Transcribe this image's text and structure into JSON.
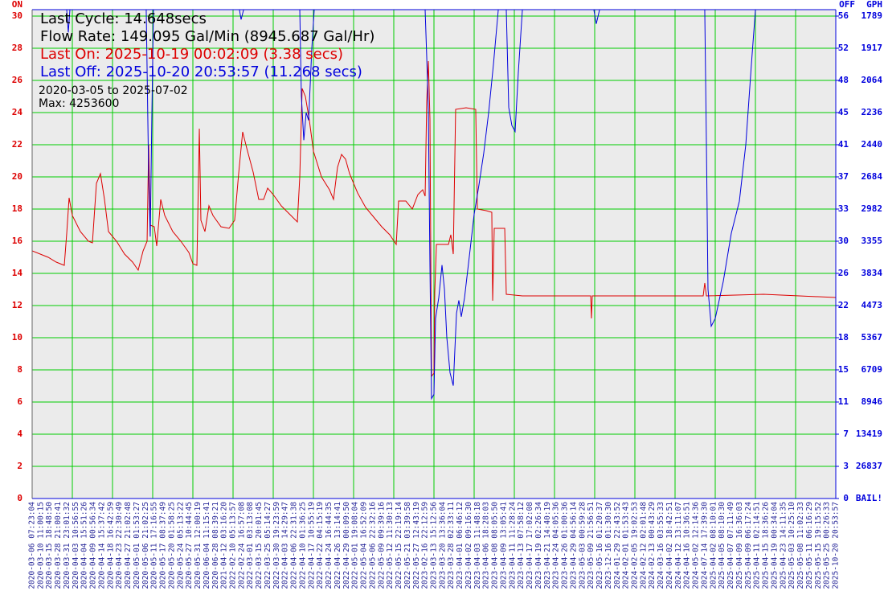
{
  "chart_data": {
    "type": "line",
    "stats": [
      "Last Cycle: 14.648secs",
      "Flow Rate: 149.095 Gal/Min (8945.687 Gal/Hr)",
      "Last On: 2025-10-19 00:02:09 (3.38 secs)",
      "Last Off: 2025-10-20 20:53:57 (11.268 secs)",
      "2020-03-05 to 2025-07-02",
      "Max: 4253600"
    ],
    "y_label": "ON",
    "y2_label": "OFF",
    "gph_label": "GPH",
    "grid": true,
    "categories": [
      "2020-03-06 07:23:04",
      "2020-03-10 11:00:15",
      "2020-03-15 18:48:50",
      "2020-03-28 21:00:41",
      "2020-03-31 23:01:32",
      "2020-04-03 10:56:55",
      "2020-04-04 15:51:26",
      "2020-04-09 00:56:34",
      "2020-04-14 15:37:42",
      "2020-04-18 16:42:59",
      "2020-04-23 22:30:49",
      "2020-04-27 21:02:48",
      "2020-05-01 01:53:27",
      "2020-05-06 21:02:25",
      "2020-05-11 17:16:55",
      "2020-05-17 08:37:49",
      "2020-05-20 01:58:25",
      "2020-05-24 05:13:22",
      "2020-05-27 10:44:45",
      "2020-05-31 12:00:19",
      "2020-06-04 11:15:41",
      "2020-06-28 08:39:21",
      "2021-04-12 03:16:20",
      "2022-02-10 05:13:57",
      "2022-02-24 16:57:08",
      "2022-03-01 03:13:08",
      "2022-03-15 20:01:45",
      "2022-03-25 05:14:27",
      "2022-03-30 19:23:59",
      "2022-04-03 14:29:47",
      "2022-04-06 22:31:38",
      "2022-04-10 01:36:25",
      "2022-04-17 10:55:19",
      "2022-04-22 04:15:19",
      "2022-04-24 16:44:35",
      "2022-04-26 13:14:41",
      "2022-04-29 00:09:50",
      "2022-05-01 19:08:04",
      "2022-05-04 16:52:09",
      "2022-05-06 22:32:16",
      "2022-05-09 09:39:16",
      "2022-05-12 11:30:13",
      "2022-05-15 22:19:14",
      "2022-05-21 03:39:58",
      "2022-05-27 12:43:19",
      "2023-02-16 22:12:59",
      "2023-03-13 15:12:56",
      "2023-03-20 13:36:04",
      "2023-03-28 02:33:11",
      "2023-04-01 06:46:12",
      "2023-04-02 09:16:30",
      "2023-04-03 11:48:18",
      "2023-04-06 18:28:03",
      "2023-04-08 08:05:50",
      "2023-04-09 13:05:41",
      "2023-04-11 11:28:24",
      "2023-04-13 07:58:12",
      "2023-04-17 17:02:08",
      "2023-04-19 02:26:34",
      "2023-04-21 14:40:19",
      "2023-04-24 04:05:36",
      "2023-04-26 01:00:36",
      "2023-04-29 04:56:14",
      "2023-05-03 00:59:28",
      "2023-05-09 21:56:51",
      "2023-05-16 01:20:37",
      "2023-12-16 01:30:30",
      "2024-01-29 22:43:52",
      "2024-02-01 01:53:43",
      "2024-02-05 19:02:53",
      "2024-02-12 02:01:48",
      "2024-02-13 00:43:29",
      "2024-03-16 03:55:33",
      "2024-04-02 18:42:51",
      "2024-04-12 13:11:07",
      "2024-04-16 10:36:51",
      "2024-05-02 12:14:36",
      "2024-07-14 17:39:30",
      "2025-04-02 08:10:01",
      "2025-04-05 08:10:30",
      "2025-04-07 07:11:49",
      "2025-04-09 16:36:03",
      "2025-04-09 06:17:24",
      "2025-04-11 02:14:51",
      "2025-04-15 18:36:26",
      "2025-04-19 00:34:04",
      "2025-04-23 14:11:35",
      "2025-05-03 10:25:10",
      "2025-05-08 11:02:33",
      "2025-05-11 06:16:29",
      "2025-05-15 19:15:52",
      "2025-05-25 00:26:33",
      "2025-10-20 20:53:57"
    ],
    "xlim": [
      0,
      92
    ],
    "xgrid": [
      0,
      4.6,
      9.2,
      13.8,
      18.4,
      23,
      27.6,
      32.2,
      36.8,
      41.4,
      46,
      50.6,
      55.2,
      59.8,
      64.4,
      69,
      73.6,
      78.2,
      82.8,
      87.4,
      92
    ],
    "ylim": [
      0,
      30.4
    ],
    "yticks": [
      0,
      2,
      4,
      6,
      8,
      10,
      12,
      14,
      16,
      18,
      20,
      22,
      24,
      26,
      28,
      30
    ],
    "y2lim": [
      0,
      56.747
    ],
    "y2ticks": [
      {
        "value": 0,
        "label": "0"
      },
      {
        "value": 3.733,
        "label": "3"
      },
      {
        "value": 7.467,
        "label": "7"
      },
      {
        "value": 11.2,
        "label": "11"
      },
      {
        "value": 14.933,
        "label": "15"
      },
      {
        "value": 18.667,
        "label": "18"
      },
      {
        "value": 22.4,
        "label": "22"
      },
      {
        "value": 26.133,
        "label": "26"
      },
      {
        "value": 29.867,
        "label": "30"
      },
      {
        "value": 33.6,
        "label": "33"
      },
      {
        "value": 37.333,
        "label": "37"
      },
      {
        "value": 41.067,
        "label": "41"
      },
      {
        "value": 44.8,
        "label": "45"
      },
      {
        "value": 48.533,
        "label": "48"
      },
      {
        "value": 52.267,
        "label": "52"
      },
      {
        "value": 56,
        "label": "56"
      }
    ],
    "gph_ticks": [
      {
        "value": 0,
        "label": "BAIL!"
      },
      {
        "value": 3.733,
        "label": "26837"
      },
      {
        "value": 7.467,
        "label": "13419"
      },
      {
        "value": 11.2,
        "label": "8946"
      },
      {
        "value": 14.933,
        "label": "6709"
      },
      {
        "value": 18.667,
        "label": "5367"
      },
      {
        "value": 22.4,
        "label": "4473"
      },
      {
        "value": 26.133,
        "label": "3834"
      },
      {
        "value": 29.867,
        "label": "3355"
      },
      {
        "value": 33.6,
        "label": "2982"
      },
      {
        "value": 37.333,
        "label": "2684"
      },
      {
        "value": 41.067,
        "label": "2440"
      },
      {
        "value": 44.8,
        "label": "2236"
      },
      {
        "value": 48.533,
        "label": "2064"
      },
      {
        "value": 52.267,
        "label": "1917"
      },
      {
        "value": 56,
        "label": "1789"
      }
    ],
    "series": [
      {
        "name": "ON",
        "color": "#dd0000",
        "x": [
          0,
          1.84,
          2.76,
          3.68,
          3.96,
          4.23,
          4.6,
          5.52,
          6.44,
          6.9,
          7.36,
          7.82,
          8.28,
          8.74,
          9.66,
          10.58,
          11.5,
          12.14,
          12.7,
          13.16,
          13.34,
          13.52,
          13.98,
          14.26,
          14.72,
          15.18,
          16.1,
          17.02,
          17.94,
          18.4,
          18.86,
          19.14,
          19.32,
          19.78,
          20.24,
          20.7,
          21.62,
          22.54,
          23.18,
          23.64,
          24.1,
          24.56,
          25.3,
          25.94,
          26.5,
          26.96,
          27.6,
          28.52,
          29.44,
          30.36,
          30.64,
          30.91,
          31.28,
          31.74,
          32.2,
          33.12,
          34.04,
          34.5,
          34.96,
          35.42,
          35.88,
          36.34,
          37.26,
          38.18,
          39.1,
          40.02,
          40.94,
          41.68,
          41.95,
          42.78,
          43.52,
          44.16,
          44.71,
          44.99,
          45.17,
          45.36,
          45.54,
          45.72,
          46,
          46.09,
          46.28,
          46.92,
          47.66,
          47.93,
          48.21,
          48.48,
          49.68,
          50.78,
          50.97,
          51.98,
          52.62,
          52.72,
          52.9,
          54.1,
          54.28,
          56.12,
          63.94,
          64.03,
          64.12,
          69.92,
          76.82,
          77,
          77.19,
          83.72,
          92
        ],
        "values": [
          15.4,
          15,
          14.7,
          14.5,
          16.5,
          18.7,
          17.6,
          16.6,
          16,
          15.9,
          19.6,
          20.2,
          18.6,
          16.6,
          16,
          15.2,
          14.7,
          14.2,
          15.4,
          16,
          22,
          17,
          16.9,
          15.7,
          18.6,
          17.6,
          16.6,
          16,
          15.3,
          14.6,
          14.5,
          23,
          17.3,
          16.6,
          18.2,
          17.6,
          16.9,
          16.8,
          17.3,
          20.2,
          22.8,
          21.8,
          20.3,
          18.6,
          18.6,
          19.3,
          18.9,
          18.2,
          17.7,
          17.2,
          20,
          25.5,
          25,
          23.5,
          21.6,
          20,
          19.2,
          18.6,
          20.6,
          21.4,
          21.1,
          20.2,
          19,
          18.1,
          17.5,
          16.9,
          16.4,
          15.8,
          18.5,
          18.5,
          18,
          18.9,
          19.2,
          18.8,
          24.7,
          27.2,
          23.6,
          7.6,
          7.8,
          12.8,
          15.8,
          15.8,
          15.8,
          16.4,
          15.2,
          24.2,
          24.3,
          24.2,
          18,
          17.9,
          17.8,
          12.3,
          16.8,
          16.8,
          12.7,
          12.6,
          12.6,
          11.2,
          12.6,
          12.6,
          12.6,
          13.4,
          12.6,
          12.7,
          12.5
        ]
      },
      {
        "name": "OFF",
        "color": "#0000dd",
        "axis": "y2",
        "x": [
          3.96,
          4.14,
          4.32,
          null,
          13.06,
          13.34,
          13.52,
          13.71,
          13.89,
          null,
          23.74,
          23.92,
          24.2,
          null,
          30.64,
          30.82,
          31.1,
          31.37,
          31.65,
          32.02,
          32.29,
          null,
          44.99,
          45.17,
          45.36,
          45.54,
          45.72,
          46,
          46.18,
          46.55,
          46.92,
          47.2,
          47.47,
          47.84,
          48.21,
          48.58,
          48.85,
          49.13,
          49.5,
          50.14,
          50.6,
          51.15,
          51.7,
          52.26,
          52.81,
          53.36,
          null,
          54.28,
          54.56,
          54.92,
          55.29,
          55.66,
          56.12,
          null,
          64.31,
          64.58,
          64.95,
          null,
          77,
          77.19,
          77.37,
          77.74,
          78.2,
          79.12,
          80.04,
          80.96,
          81.7,
          82.34,
          82.8
        ],
        "values": [
          56.7,
          54.1,
          56.7,
          null,
          56.7,
          37.3,
          30.4,
          44.8,
          56.7,
          null,
          56.7,
          55.6,
          56.7,
          null,
          56.7,
          46.7,
          41.6,
          44.8,
          43.9,
          52.3,
          56.7,
          null,
          56.7,
          51.3,
          44.8,
          27.1,
          11.6,
          12.1,
          20.9,
          23.3,
          27.1,
          24.3,
          18.7,
          14.6,
          13.1,
          21.5,
          23,
          21.1,
          23.3,
          28.9,
          33,
          36.4,
          40.1,
          44.8,
          50.4,
          56.7,
          null,
          56.7,
          45.4,
          43.3,
          42.6,
          49.5,
          56.7,
          null,
          56.7,
          55.1,
          56.7,
          null,
          56.7,
          41.1,
          24.3,
          20,
          20.9,
          25.2,
          30.8,
          34.5,
          41.1,
          50.4,
          56.7
        ]
      }
    ]
  }
}
